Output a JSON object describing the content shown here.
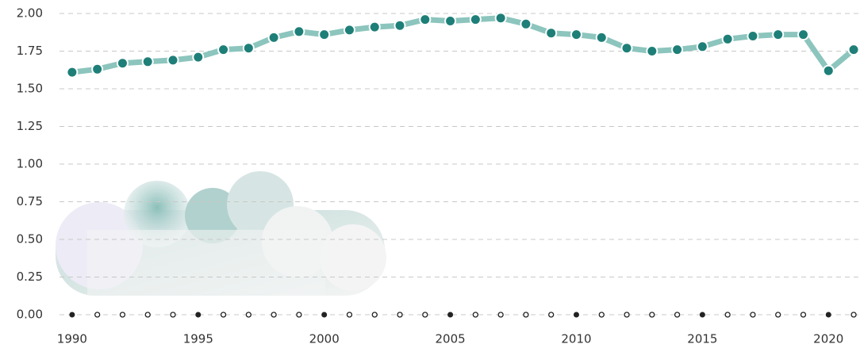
{
  "chart_data": {
    "type": "line",
    "x": [
      1990,
      1991,
      1992,
      1993,
      1994,
      1995,
      1996,
      1997,
      1998,
      1999,
      2000,
      2001,
      2002,
      2003,
      2004,
      2005,
      2006,
      2007,
      2008,
      2009,
      2010,
      2011,
      2012,
      2013,
      2014,
      2015,
      2016,
      2017,
      2018,
      2019,
      2020,
      2021
    ],
    "series": [
      {
        "color": "#1e7f78",
        "line_color": "#8cc5bd",
        "values": [
          1.61,
          1.63,
          1.67,
          1.68,
          1.69,
          1.71,
          1.76,
          1.77,
          1.84,
          1.88,
          1.86,
          1.89,
          1.91,
          1.92,
          1.96,
          1.95,
          1.96,
          1.97,
          1.93,
          1.87,
          1.86,
          1.84,
          1.77,
          1.75,
          1.76,
          1.78,
          1.83,
          1.85,
          1.86,
          1.86,
          1.62,
          1.76
        ]
      }
    ],
    "xlim": [
      1989.5,
      2021.25
    ],
    "xticks": [
      1990,
      1995,
      2000,
      2005,
      2010,
      2015,
      2020
    ],
    "ylim": [
      0,
      2
    ],
    "yticks": [
      {
        "value": 0,
        "label": "0.00"
      },
      {
        "value": 0.25,
        "label": "0.25"
      },
      {
        "value": 0.5,
        "label": "0.50"
      },
      {
        "value": 0.75,
        "label": "0.75"
      },
      {
        "value": 1,
        "label": "1.00"
      },
      {
        "value": 1.25,
        "label": "1.25"
      },
      {
        "value": 1.5,
        "label": "1.50"
      },
      {
        "value": 1.75,
        "label": "1.75"
      },
      {
        "value": 2,
        "label": "2.00"
      }
    ],
    "grid": true
  }
}
